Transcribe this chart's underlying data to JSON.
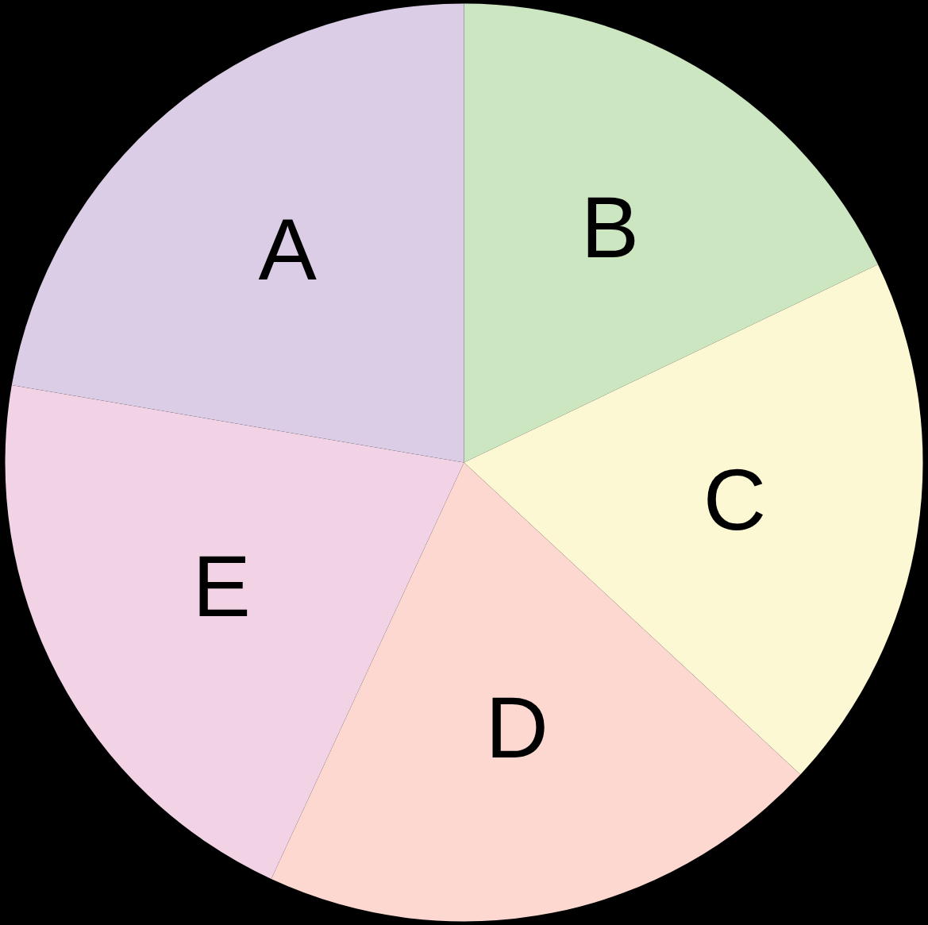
{
  "chart_data": {
    "type": "pie",
    "categories": [
      "B",
      "C",
      "D",
      "E",
      "A"
    ],
    "values": [
      17.9,
      19.0,
      20.0,
      20.8,
      22.3
    ],
    "colors": [
      "#cde6c2",
      "#fcf8d4",
      "#fcd8d0",
      "#f2d3e6",
      "#dccde6"
    ]
  }
}
